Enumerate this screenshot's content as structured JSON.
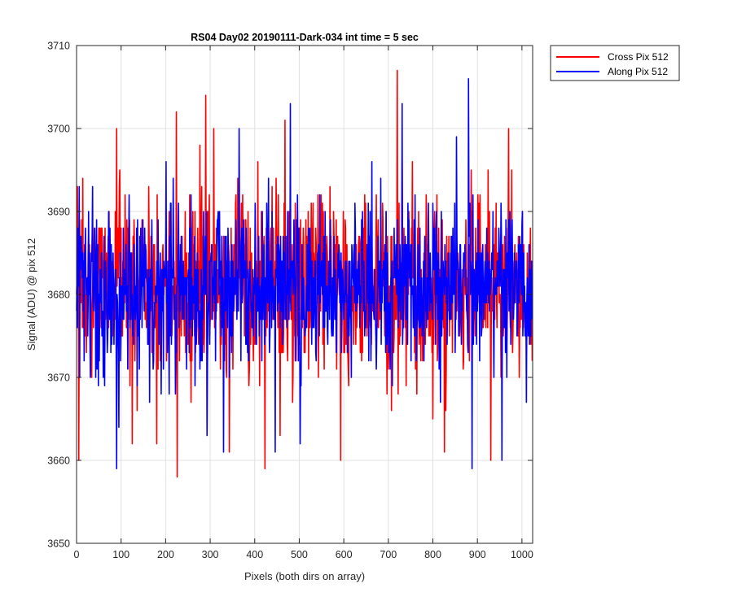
{
  "chart_data": {
    "type": "line",
    "title": "RS04 Day02 20190111-Dark-034 int time = 5 sec",
    "xlabel": "Pixels (both dirs on array)",
    "ylabel": "Signal (ADU) @ pix 512",
    "xlim": [
      0,
      1024
    ],
    "ylim": [
      3650,
      3710
    ],
    "xticks": [
      0,
      100,
      200,
      300,
      400,
      500,
      600,
      700,
      800,
      900,
      1000
    ],
    "yticks": [
      3650,
      3660,
      3670,
      3680,
      3690,
      3700,
      3710
    ],
    "grid": true,
    "legend_position": "outside-top-right",
    "series": [
      {
        "name": "Cross Pix 512",
        "color": "#ff0000",
        "noise": {
          "mean": 3681,
          "min": 3658,
          "max": 3707,
          "spread": 5.5,
          "count": 1024
        },
        "highlights": [
          {
            "x": 90,
            "y": 3700
          },
          {
            "x": 125,
            "y": 3662
          },
          {
            "x": 180,
            "y": 3662
          },
          {
            "x": 224,
            "y": 3702
          },
          {
            "x": 226,
            "y": 3658
          },
          {
            "x": 290,
            "y": 3704
          },
          {
            "x": 293,
            "y": 3663
          },
          {
            "x": 308,
            "y": 3700
          },
          {
            "x": 423,
            "y": 3659
          },
          {
            "x": 468,
            "y": 3701
          },
          {
            "x": 593,
            "y": 3660
          },
          {
            "x": 720,
            "y": 3707
          },
          {
            "x": 826,
            "y": 3661
          },
          {
            "x": 930,
            "y": 3660
          },
          {
            "x": 970,
            "y": 3700
          }
        ]
      },
      {
        "name": "Along Pix 512",
        "color": "#0000ff",
        "noise": {
          "mean": 3681,
          "min": 3659,
          "max": 3706,
          "spread": 5.0,
          "count": 1024
        },
        "highlights": [
          {
            "x": 90,
            "y": 3659
          },
          {
            "x": 95,
            "y": 3664
          },
          {
            "x": 330,
            "y": 3661
          },
          {
            "x": 365,
            "y": 3700
          },
          {
            "x": 480,
            "y": 3703
          },
          {
            "x": 502,
            "y": 3662
          },
          {
            "x": 880,
            "y": 3706
          },
          {
            "x": 888,
            "y": 3659
          },
          {
            "x": 955,
            "y": 3660
          },
          {
            "x": 1010,
            "y": 3667
          }
        ]
      }
    ]
  }
}
